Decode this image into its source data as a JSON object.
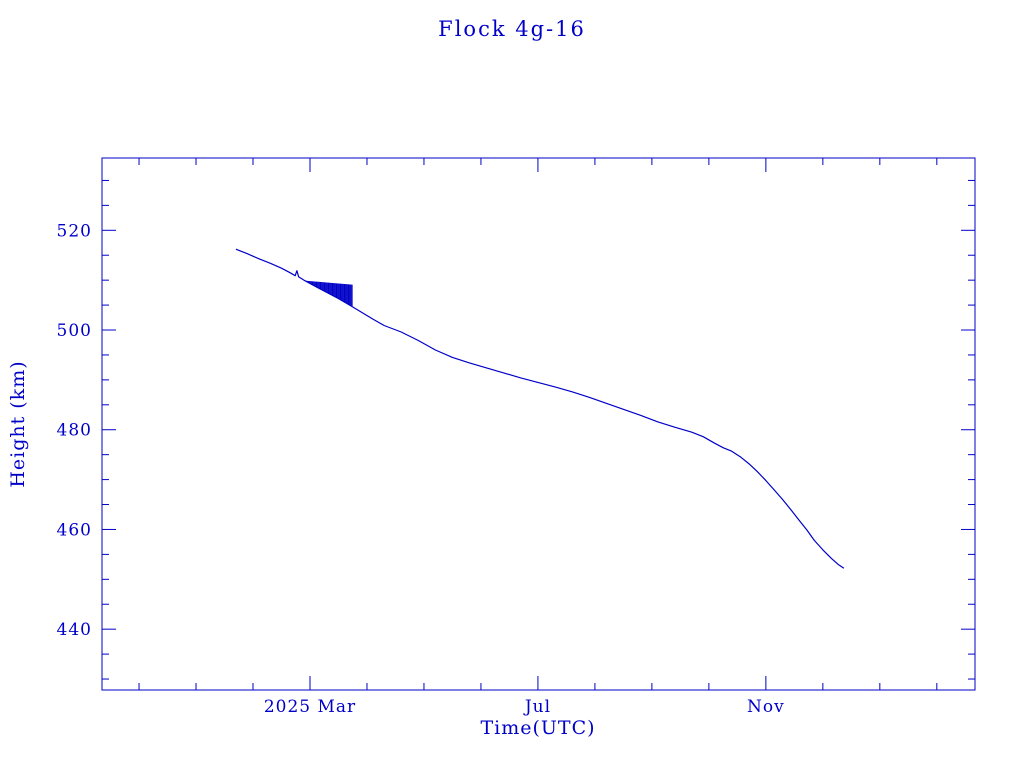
{
  "chart_data": {
    "type": "line",
    "title": "Flock 4g-16",
    "xlabel": "Time(UTC)",
    "ylabel": "Height (km)",
    "color": "#0000c8",
    "x_unit": "months since 2025-01-01",
    "xlim": [
      -1.65,
      13.67
    ],
    "ylim": [
      427.8,
      534.5
    ],
    "x_major_ticks": [
      {
        "t": 2,
        "label": "2025 Mar"
      },
      {
        "t": 6,
        "label": "Jul"
      },
      {
        "t": 10,
        "label": "Nov"
      }
    ],
    "x_minor_step": 1,
    "y_major_ticks": [
      440,
      460,
      480,
      500,
      520
    ],
    "y_minor_step": 5,
    "series": [
      {
        "name": "height",
        "points": [
          [
            0.7,
            516.2
          ],
          [
            0.9,
            515.3
          ],
          [
            1.1,
            514.3
          ],
          [
            1.3,
            513.4
          ],
          [
            1.5,
            512.4
          ],
          [
            1.65,
            511.5
          ],
          [
            1.74,
            510.9
          ],
          [
            1.77,
            511.9
          ],
          [
            1.8,
            510.7
          ],
          [
            1.91,
            509.9
          ],
          [
            2.1,
            508.7
          ],
          [
            2.3,
            507.5
          ],
          [
            2.5,
            506.3
          ],
          [
            2.74,
            504.7
          ],
          [
            2.9,
            503.6
          ],
          [
            3.1,
            502.2
          ],
          [
            3.3,
            500.9
          ],
          [
            3.6,
            499.6
          ],
          [
            3.9,
            497.9
          ],
          [
            4.2,
            496.0
          ],
          [
            4.5,
            494.5
          ],
          [
            4.8,
            493.4
          ],
          [
            5.1,
            492.4
          ],
          [
            5.4,
            491.4
          ],
          [
            5.7,
            490.4
          ],
          [
            6.0,
            489.5
          ],
          [
            6.3,
            488.6
          ],
          [
            6.6,
            487.6
          ],
          [
            6.9,
            486.5
          ],
          [
            7.2,
            485.3
          ],
          [
            7.5,
            484.1
          ],
          [
            7.8,
            482.9
          ],
          [
            8.1,
            481.6
          ],
          [
            8.4,
            480.5
          ],
          [
            8.7,
            479.5
          ],
          [
            8.9,
            478.6
          ],
          [
            9.1,
            477.3
          ],
          [
            9.25,
            476.4
          ],
          [
            9.4,
            475.7
          ],
          [
            9.55,
            474.6
          ],
          [
            9.7,
            473.2
          ],
          [
            9.85,
            471.6
          ],
          [
            10.0,
            469.8
          ],
          [
            10.15,
            467.9
          ],
          [
            10.3,
            465.9
          ],
          [
            10.45,
            463.8
          ],
          [
            10.6,
            461.6
          ],
          [
            10.72,
            459.9
          ],
          [
            10.85,
            457.8
          ],
          [
            11.0,
            455.9
          ],
          [
            11.15,
            454.2
          ],
          [
            11.28,
            452.9
          ],
          [
            11.37,
            452.2
          ]
        ]
      }
    ],
    "noise_band": {
      "t_start": 1.91,
      "t_end": 2.74,
      "top_start": 509.9,
      "top_end": 509.1,
      "spike_count": 60
    }
  }
}
